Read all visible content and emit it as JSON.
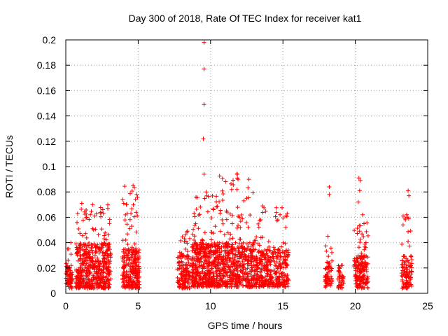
{
  "chart_data": {
    "type": "scatter",
    "title": "Day 300 of 2018, Rate Of TEC Index for receiver kat1",
    "xlabel": "GPS time / hours",
    "ylabel": "ROTI / TECUs",
    "xlim": [
      0,
      25
    ],
    "ylim": [
      0,
      0.2
    ],
    "x_ticks": [
      "0",
      "5",
      "10",
      "15",
      "20",
      "25"
    ],
    "y_ticks": [
      "0",
      "0.02",
      "0.04",
      "0.06",
      "0.08",
      "0.1",
      "0.12",
      "0.14",
      "0.16",
      "0.18",
      "0.2"
    ],
    "grid": true,
    "marker": "+",
    "series_color": "#ff0000",
    "clusters": [
      {
        "x": [
          0.0,
          0.45
        ],
        "y": [
          0.004,
          0.022
        ],
        "peak": 0.04,
        "count": 80
      },
      {
        "x": [
          0.7,
          3.1
        ],
        "y": [
          0.004,
          0.04
        ],
        "peak": 0.071,
        "count": 520
      },
      {
        "x": [
          3.9,
          5.1
        ],
        "y": [
          0.004,
          0.035
        ],
        "peak": 0.085,
        "count": 260
      },
      {
        "x": [
          7.7,
          8.6
        ],
        "y": [
          0.004,
          0.03
        ],
        "peak": 0.05,
        "count": 140
      },
      {
        "x": [
          8.7,
          10.4
        ],
        "y": [
          0.005,
          0.04
        ],
        "peak": 0.08,
        "count": 420
      },
      {
        "x": [
          10.4,
          13.0
        ],
        "y": [
          0.005,
          0.04
        ],
        "peak": 0.095,
        "count": 520
      },
      {
        "x": [
          13.0,
          15.4
        ],
        "y": [
          0.005,
          0.035
        ],
        "peak": 0.068,
        "count": 380
      },
      {
        "x": [
          17.9,
          18.4
        ],
        "y": [
          0.004,
          0.025
        ],
        "peak": 0.045,
        "count": 60
      },
      {
        "x": [
          18.8,
          19.2
        ],
        "y": [
          0.004,
          0.022
        ],
        "peak": 0.022,
        "count": 40
      },
      {
        "x": [
          19.9,
          20.9
        ],
        "y": [
          0.004,
          0.03
        ],
        "peak": 0.06,
        "count": 170
      },
      {
        "x": [
          23.2,
          23.9
        ],
        "y": [
          0.004,
          0.03
        ],
        "peak": 0.062,
        "count": 110
      }
    ],
    "points": [
      [
        9.55,
        0.198
      ],
      [
        9.55,
        0.177
      ],
      [
        9.55,
        0.149
      ],
      [
        9.5,
        0.122
      ],
      [
        9.55,
        0.094
      ],
      [
        11.85,
        0.094
      ],
      [
        11.9,
        0.09
      ],
      [
        20.25,
        0.091
      ],
      [
        20.35,
        0.089
      ],
      [
        20.3,
        0.081
      ],
      [
        4.65,
        0.085
      ],
      [
        18.2,
        0.084
      ],
      [
        18.2,
        0.078
      ],
      [
        23.65,
        0.081
      ],
      [
        23.7,
        0.077
      ],
      [
        4.9,
        0.078
      ],
      [
        9.7,
        0.08
      ],
      [
        12.5,
        0.075
      ],
      [
        12.3,
        0.073
      ],
      [
        1.1,
        0.071
      ],
      [
        4.0,
        0.071
      ],
      [
        4.2,
        0.07
      ],
      [
        20.2,
        0.072
      ],
      [
        20.5,
        0.062
      ],
      [
        13.6,
        0.069
      ],
      [
        9.3,
        0.068
      ],
      [
        10.2,
        0.066
      ],
      [
        11.1,
        0.065
      ],
      [
        2.9,
        0.067
      ],
      [
        2.6,
        0.063
      ],
      [
        14.8,
        0.062
      ],
      [
        15.2,
        0.061
      ],
      [
        23.55,
        0.062
      ],
      [
        23.6,
        0.06
      ],
      [
        23.3,
        0.054
      ],
      [
        12.0,
        0.06
      ],
      [
        10.8,
        0.058
      ],
      [
        4.5,
        0.063
      ],
      [
        1.7,
        0.062
      ],
      [
        2.0,
        0.061
      ],
      [
        1.45,
        0.06
      ],
      [
        8.4,
        0.049
      ],
      [
        8.2,
        0.043
      ],
      [
        20.6,
        0.055
      ],
      [
        18.1,
        0.045
      ],
      [
        0.35,
        0.04
      ],
      [
        0.2,
        0.035
      ],
      [
        4.55,
        0.053
      ],
      [
        12.6,
        0.052
      ],
      [
        11.5,
        0.055
      ]
    ]
  }
}
